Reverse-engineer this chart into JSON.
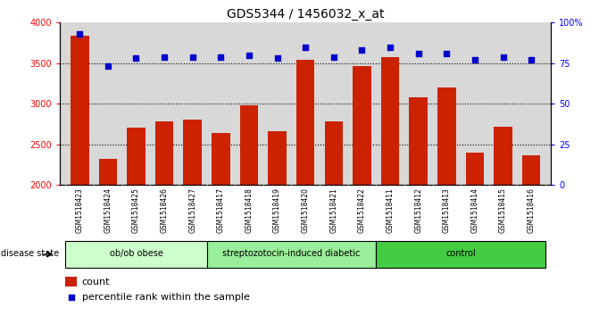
{
  "title": "GDS5344 / 1456032_x_at",
  "samples": [
    "GSM1518423",
    "GSM1518424",
    "GSM1518425",
    "GSM1518426",
    "GSM1518427",
    "GSM1518417",
    "GSM1518418",
    "GSM1518419",
    "GSM1518420",
    "GSM1518421",
    "GSM1518422",
    "GSM1518411",
    "GSM1518412",
    "GSM1518413",
    "GSM1518414",
    "GSM1518415",
    "GSM1518416"
  ],
  "counts": [
    3840,
    2320,
    2700,
    2780,
    2800,
    2640,
    2975,
    2660,
    3540,
    2780,
    3470,
    3570,
    3080,
    3200,
    2400,
    2720,
    2360
  ],
  "percentile_ranks": [
    93,
    73,
    78,
    79,
    79,
    79,
    80,
    78,
    85,
    79,
    83,
    85,
    81,
    81,
    77,
    79,
    77
  ],
  "groups": [
    {
      "label": "ob/ob obese",
      "start": 0,
      "end": 5,
      "color": "#ccffcc"
    },
    {
      "label": "streptozotocin-induced diabetic",
      "start": 5,
      "end": 11,
      "color": "#99ee99"
    },
    {
      "label": "control",
      "start": 11,
      "end": 17,
      "color": "#44cc44"
    }
  ],
  "ylim_left": [
    2000,
    4000
  ],
  "ylim_right": [
    0,
    100
  ],
  "bar_color": "#cc2200",
  "dot_color": "#0000cc",
  "plot_bg_color": "#d8d8d8",
  "xtick_bg_color": "#c8c8c8",
  "title_fontsize": 10,
  "tick_fontsize": 7,
  "label_fontsize": 7,
  "disease_label": "disease state"
}
